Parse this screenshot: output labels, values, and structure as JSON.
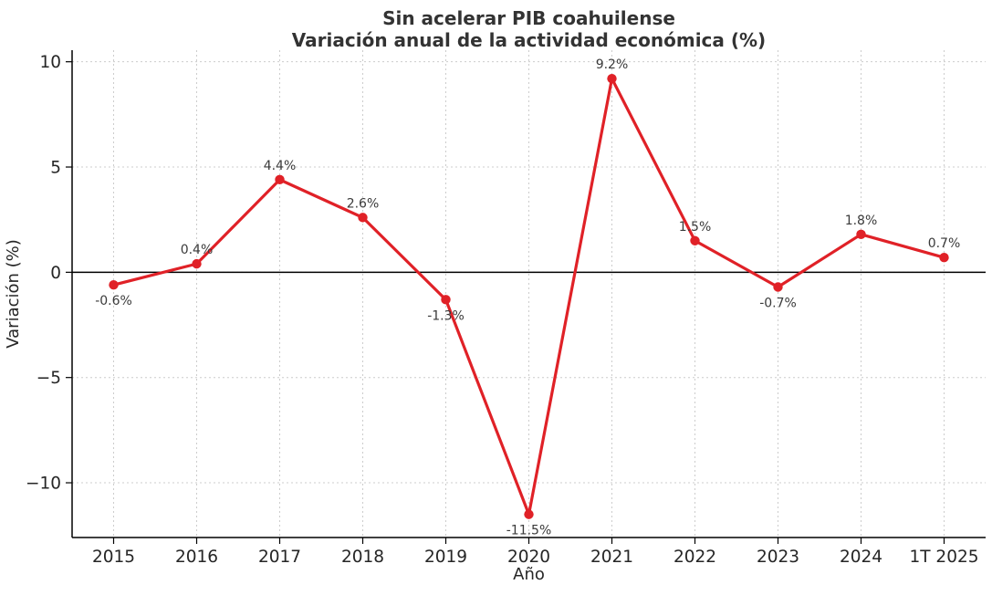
{
  "chart_data": {
    "type": "line",
    "title": "Sin acelerar PIB coahuilense\nVariación anual de la actividad económica (%)",
    "xlabel": "Año",
    "ylabel": "Variación (%)",
    "categories": [
      "2015",
      "2016",
      "2017",
      "2018",
      "2019",
      "2020",
      "2021",
      "2022",
      "2023",
      "2024",
      "1T 2025"
    ],
    "series": [
      {
        "name": "Variación anual (%)",
        "values": [
          -0.6,
          0.4,
          4.4,
          2.6,
          -1.3,
          -11.5,
          9.2,
          1.5,
          -0.7,
          1.8,
          0.7
        ]
      }
    ],
    "point_labels": [
      "-0.6%",
      "0.4%",
      "4.4%",
      "2.6%",
      "-1.3%",
      "-11.5%",
      "9.2%",
      "1.5%",
      "-0.7%",
      "1.8%",
      "0.7%"
    ],
    "xlim": [
      -0.5,
      10.5
    ],
    "ylim": [
      -12.6,
      10.55
    ],
    "yticks": [
      10,
      5,
      0,
      -5,
      -10
    ],
    "ytick_labels": [
      "10",
      "5",
      "0",
      "−5",
      "−10"
    ],
    "grid": "dashed-both-axes",
    "legend": "none",
    "zero_line": true,
    "marker": "circle",
    "colors": {
      "line": "#e02127",
      "marker": "#e02127",
      "zero_line": "#000000",
      "axis": "#000000",
      "grid": "#cccccc",
      "title": "#333333",
      "tick_text": "#262626",
      "point_label": "#3a3a3a",
      "background": "#ffffff"
    }
  }
}
